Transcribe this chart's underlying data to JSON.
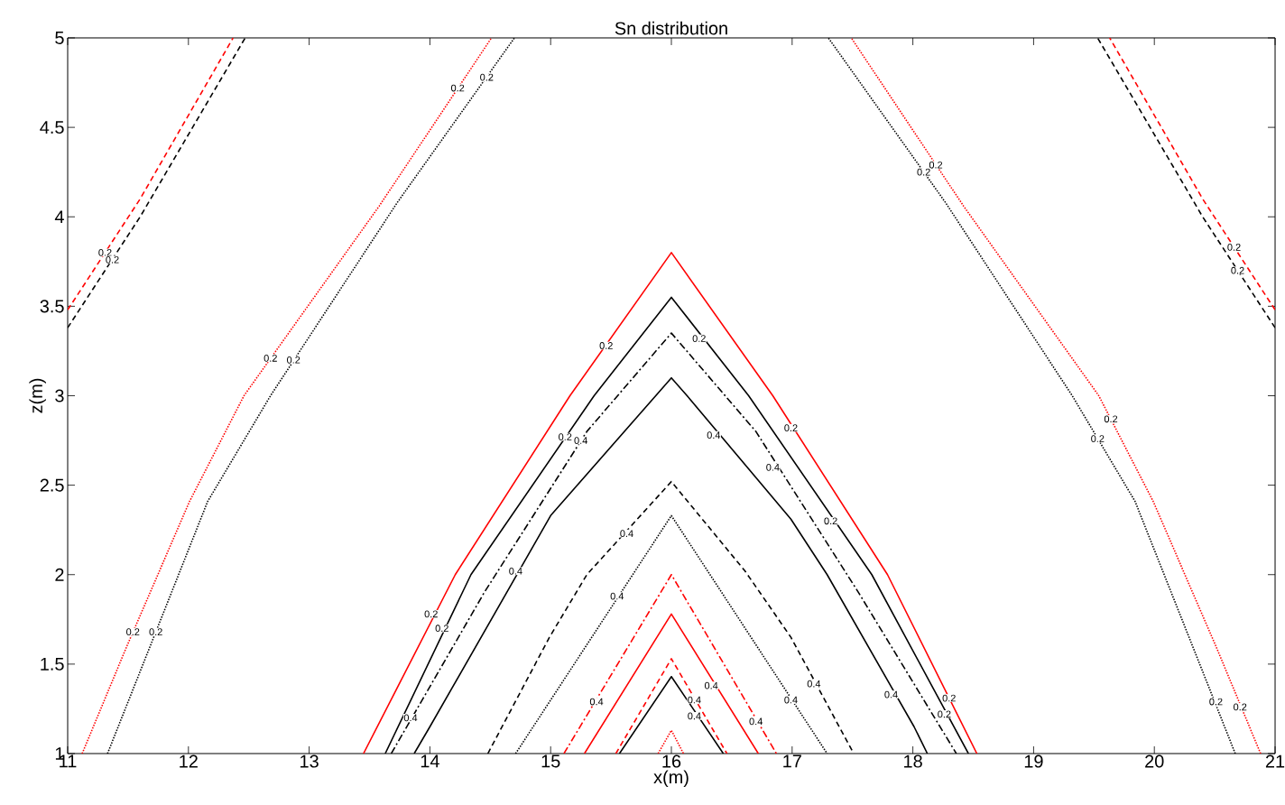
{
  "chart_data": {
    "type": "line",
    "title": "Sn distribution",
    "xlabel": "x(m)",
    "ylabel": "z(m)",
    "xlim": [
      11,
      21
    ],
    "xticks": [
      11,
      12,
      13,
      14,
      15,
      16,
      17,
      18,
      19,
      20,
      21
    ],
    "ylim": [
      1,
      5
    ],
    "yticks": [
      1,
      1.5,
      2,
      2.5,
      3,
      3.5,
      4,
      4.5,
      5
    ],
    "grid": false,
    "series": [
      {
        "color": "#ff0000",
        "line_style": "solid",
        "x": [
          13.45,
          14.21,
          15.16,
          16,
          16.84,
          17.79,
          18.53
        ],
        "values": [
          1,
          2.0,
          3.0,
          3.8,
          3.0,
          2.0,
          1
        ]
      },
      {
        "color": "#000000",
        "line_style": "solid",
        "x": [
          13.63,
          14.34,
          15.36,
          16,
          16.64,
          17.66,
          18.46
        ],
        "values": [
          1,
          2.0,
          3.0,
          3.55,
          3.0,
          2.0,
          1
        ]
      },
      {
        "color": "#000000",
        "line_style": "dashdot",
        "x": [
          13.68,
          14.45,
          15.3,
          16,
          16.7,
          17.55,
          18.36
        ],
        "values": [
          1,
          1.9,
          2.8,
          3.35,
          2.8,
          1.9,
          1
        ]
      },
      {
        "color": "#000000",
        "line_style": "solid",
        "x": [
          13.87,
          14.0,
          15.0,
          16,
          16.13,
          16.99,
          17.29,
          18.01,
          18.12
        ],
        "values": [
          1,
          1.15,
          2.33,
          3.1,
          3.0,
          2.31,
          2.0,
          1.15,
          1
        ]
      },
      {
        "color": "#000000",
        "line_style": "dashed",
        "x": [
          14.48,
          14.99,
          15.3,
          16,
          16.61,
          16.99,
          17.51
        ],
        "values": [
          1,
          1.65,
          2.0,
          2.52,
          2.02,
          1.65,
          1
        ]
      },
      {
        "color": "#000000",
        "line_style": "dotted",
        "x": [
          14.71,
          16,
          17.29
        ],
        "values": [
          1,
          2.33,
          1
        ]
      },
      {
        "color": "#ff0000",
        "line_style": "dashdot",
        "x": [
          15.11,
          16,
          16.87
        ],
        "values": [
          1,
          2.0,
          1
        ]
      },
      {
        "color": "#ff0000",
        "line_style": "solid",
        "x": [
          15.28,
          16,
          16.72
        ],
        "values": [
          1,
          1.78,
          1
        ]
      },
      {
        "color": "#ff0000",
        "line_style": "dashed",
        "x": [
          15.54,
          16,
          16.46
        ],
        "values": [
          1,
          1.53,
          1
        ]
      },
      {
        "color": "#000000",
        "line_style": "solid",
        "x": [
          15.57,
          16,
          16.43
        ],
        "values": [
          1,
          1.43,
          1
        ]
      },
      {
        "color": "#ff0000",
        "line_style": "dotted",
        "x": [
          15.89,
          16,
          16.1
        ],
        "values": [
          1,
          1.13,
          1
        ]
      },
      {
        "color": "#ff0000",
        "line_style": "dotted",
        "x": [
          11.12,
          11.49,
          12.01,
          12.46,
          13.58,
          14.51
        ],
        "values": [
          1,
          1.6,
          2.41,
          3.0,
          4.06,
          5
        ]
      },
      {
        "color": "#000000",
        "line_style": "dotted",
        "x": [
          11.33,
          12.16,
          12.68,
          13.73,
          14.7
        ],
        "values": [
          1,
          2.41,
          3.0,
          4.08,
          5
        ]
      },
      {
        "color": "#ff0000",
        "line_style": "dotted",
        "x": [
          20.88,
          20.51,
          19.99,
          19.54,
          18.42,
          17.49
        ],
        "values": [
          1,
          1.6,
          2.41,
          3.0,
          4.06,
          5
        ]
      },
      {
        "color": "#000000",
        "line_style": "dotted",
        "x": [
          20.67,
          19.84,
          19.32,
          18.27,
          17.3
        ],
        "values": [
          1,
          2.41,
          3.0,
          4.08,
          5
        ]
      },
      {
        "color": "#ff0000",
        "line_style": "dashed",
        "x": [
          11,
          11.6,
          12.37
        ],
        "values": [
          3.48,
          4.1,
          5
        ]
      },
      {
        "color": "#000000",
        "line_style": "dashed",
        "x": [
          11,
          11.6,
          12.47
        ],
        "values": [
          3.38,
          4.0,
          5
        ]
      },
      {
        "color": "#ff0000",
        "line_style": "dashed",
        "x": [
          21,
          20.4,
          19.63
        ],
        "values": [
          3.48,
          4.1,
          5
        ]
      },
      {
        "color": "#000000",
        "line_style": "dashed",
        "x": [
          21,
          20.4,
          19.53
        ],
        "values": [
          3.38,
          4.0,
          5
        ]
      }
    ],
    "annotations": [
      {
        "text": "0.2",
        "x": 11.31,
        "y": 3.8
      },
      {
        "text": "0.2",
        "x": 11.37,
        "y": 3.76
      },
      {
        "text": "0.2",
        "x": 14.23,
        "y": 4.72
      },
      {
        "text": "0.2",
        "x": 14.47,
        "y": 4.78
      },
      {
        "text": "0.2",
        "x": 12.68,
        "y": 3.21
      },
      {
        "text": "0.2",
        "x": 12.87,
        "y": 3.2
      },
      {
        "text": "0.2",
        "x": 11.54,
        "y": 1.68
      },
      {
        "text": "0.2",
        "x": 11.73,
        "y": 1.68
      },
      {
        "text": "0.2",
        "x": 18.19,
        "y": 4.29
      },
      {
        "text": "0.2",
        "x": 18.09,
        "y": 4.25
      },
      {
        "text": "0.2",
        "x": 20.66,
        "y": 3.83
      },
      {
        "text": "0.2",
        "x": 20.69,
        "y": 3.7
      },
      {
        "text": "0.2",
        "x": 19.64,
        "y": 2.87
      },
      {
        "text": "0.2",
        "x": 19.53,
        "y": 2.76
      },
      {
        "text": "0.2",
        "x": 20.51,
        "y": 1.29
      },
      {
        "text": "0.2",
        "x": 20.71,
        "y": 1.26
      },
      {
        "text": "0.2",
        "x": 15.46,
        "y": 3.28
      },
      {
        "text": "0.2",
        "x": 16.23,
        "y": 3.32
      },
      {
        "text": "0.2",
        "x": 16.99,
        "y": 2.82
      },
      {
        "text": "0.2",
        "x": 15.12,
        "y": 2.77
      },
      {
        "text": "0.4",
        "x": 15.25,
        "y": 2.75
      },
      {
        "text": "0.4",
        "x": 16.35,
        "y": 2.78
      },
      {
        "text": "0.4",
        "x": 16.84,
        "y": 2.6
      },
      {
        "text": "0.2",
        "x": 17.32,
        "y": 2.3
      },
      {
        "text": "0.4",
        "x": 14.71,
        "y": 2.02
      },
      {
        "text": "0.4",
        "x": 15.63,
        "y": 2.23
      },
      {
        "text": "0.4",
        "x": 15.55,
        "y": 1.88
      },
      {
        "text": "0.2",
        "x": 14.01,
        "y": 1.78
      },
      {
        "text": "0.2",
        "x": 14.1,
        "y": 1.7
      },
      {
        "text": "0.4",
        "x": 13.84,
        "y": 1.2
      },
      {
        "text": "0.4",
        "x": 15.38,
        "y": 1.29
      },
      {
        "text": "0.4",
        "x": 16.33,
        "y": 1.38
      },
      {
        "text": "0.4",
        "x": 16.19,
        "y": 1.3
      },
      {
        "text": "0.4",
        "x": 16.19,
        "y": 1.21
      },
      {
        "text": "0.4",
        "x": 16.7,
        "y": 1.18
      },
      {
        "text": "0.4",
        "x": 17.18,
        "y": 1.39
      },
      {
        "text": "0.4",
        "x": 16.99,
        "y": 1.3
      },
      {
        "text": "0.4",
        "x": 17.82,
        "y": 1.33
      },
      {
        "text": "0.2",
        "x": 18.3,
        "y": 1.31
      },
      {
        "text": "0.2",
        "x": 18.26,
        "y": 1.22
      }
    ]
  }
}
